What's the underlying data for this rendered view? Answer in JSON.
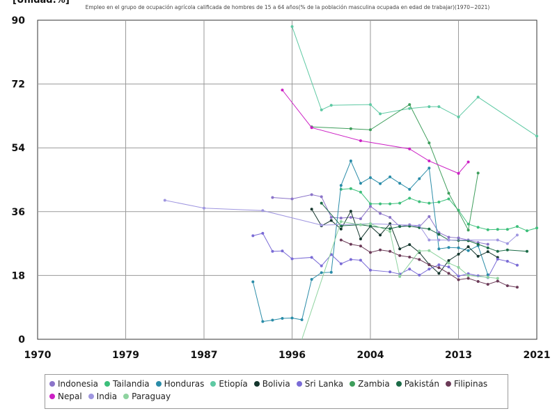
{
  "chart_data": {
    "type": "line",
    "unit_label": "[Unidad:%]",
    "title": "Empleo en el grupo de ocupación agrícola calificada de hombres de 15 a 64 años(% de la población masculina ocupada en edad de trabajar)(1970~2021)",
    "xlim": [
      1970,
      2021
    ],
    "ylim": [
      0,
      90
    ],
    "x_ticks": [
      "1970",
      "1979",
      "1987",
      "1996",
      "2004",
      "2013",
      "2021"
    ],
    "x_tick_values": [
      1970,
      1979,
      1987,
      1996,
      2004,
      2013,
      2021
    ],
    "y_ticks": [
      "0",
      "18",
      "36",
      "54",
      "72",
      "90"
    ],
    "y_tick_values": [
      0,
      18,
      36,
      54,
      72,
      90
    ],
    "grid": true,
    "legend_position": "bottom",
    "series": [
      {
        "name": "Indonesia",
        "color": "#8b74c9",
        "points": [
          [
            1994,
            40
          ],
          [
            1996,
            39.6
          ],
          [
            1998,
            40.8
          ],
          [
            1999,
            40.2
          ],
          [
            2000,
            34.4
          ],
          [
            2001,
            34.2
          ],
          [
            2002,
            34.4
          ],
          [
            2003,
            34.0
          ],
          [
            2004,
            37.5
          ],
          [
            2005,
            35.5
          ],
          [
            2006,
            34.4
          ],
          [
            2007,
            31.8
          ],
          [
            2008,
            32.3
          ],
          [
            2009,
            31.7
          ],
          [
            2010,
            34.6
          ],
          [
            2011,
            30.1
          ],
          [
            2012,
            28.8
          ],
          [
            2013,
            28.6
          ],
          [
            2014,
            28.0
          ],
          [
            2015,
            27.3
          ],
          [
            2016,
            26.8
          ]
        ]
      },
      {
        "name": "Tailandia",
        "color": "#3cbf7a",
        "points": [
          [
            2001,
            42.3
          ],
          [
            2002,
            42.5
          ],
          [
            2003,
            41.5
          ],
          [
            2004,
            38.2
          ],
          [
            2005,
            38.2
          ],
          [
            2006,
            38.2
          ],
          [
            2007,
            38.4
          ],
          [
            2008,
            39.8
          ],
          [
            2009,
            38.8
          ],
          [
            2010,
            38.4
          ],
          [
            2011,
            38.7
          ],
          [
            2012,
            39.6
          ],
          [
            2013,
            36.4
          ],
          [
            2014,
            32.5
          ],
          [
            2015,
            31.6
          ],
          [
            2016,
            30.9
          ],
          [
            2017,
            31.0
          ],
          [
            2018,
            31.0
          ],
          [
            2019,
            31.8
          ],
          [
            2020,
            30.6
          ],
          [
            2021,
            31.4
          ]
        ]
      },
      {
        "name": "Honduras",
        "color": "#2a8ca8",
        "points": [
          [
            1992,
            16.2
          ],
          [
            1993,
            5.0
          ],
          [
            1994,
            5.4
          ],
          [
            1995,
            5.9
          ],
          [
            1996,
            6.0
          ],
          [
            1997,
            5.5
          ],
          [
            1998,
            16.9
          ],
          [
            1999,
            18.8
          ],
          [
            2000,
            18.9
          ],
          [
            2001,
            43.4
          ],
          [
            2002,
            50.3
          ],
          [
            2003,
            44.0
          ],
          [
            2004,
            45.6
          ],
          [
            2005,
            43.9
          ],
          [
            2006,
            45.8
          ],
          [
            2007,
            44.0
          ],
          [
            2008,
            42.3
          ],
          [
            2009,
            45.3
          ],
          [
            2010,
            48.3
          ],
          [
            2011,
            25.5
          ],
          [
            2012,
            25.9
          ],
          [
            2013,
            25.8
          ],
          [
            2014,
            25.0
          ],
          [
            2015,
            26.4
          ],
          [
            2016,
            18.2
          ]
        ]
      },
      {
        "name": "Etiopía",
        "color": "#5ec9a3",
        "points": [
          [
            1996,
            88.2
          ],
          [
            1999,
            64.7
          ],
          [
            2000,
            66.0
          ],
          [
            2004,
            66.2
          ],
          [
            2005,
            63.6
          ],
          [
            2008,
            65.1
          ],
          [
            2010,
            65.6
          ],
          [
            2011,
            65.6
          ],
          [
            2013,
            62.7
          ],
          [
            2015,
            68.3
          ],
          [
            2021,
            57.3
          ]
        ]
      },
      {
        "name": "Bolivia",
        "color": "#14362d",
        "points": [
          [
            1998,
            36.7
          ],
          [
            1999,
            32.0
          ],
          [
            2000,
            33.5
          ],
          [
            2001,
            31.1
          ],
          [
            2002,
            36.1
          ],
          [
            2003,
            28.3
          ],
          [
            2004,
            31.9
          ],
          [
            2005,
            29.4
          ],
          [
            2006,
            32.6
          ],
          [
            2007,
            25.5
          ],
          [
            2008,
            26.7
          ],
          [
            2009,
            24.5
          ],
          [
            2010,
            21.1
          ],
          [
            2011,
            18.6
          ],
          [
            2012,
            22.2
          ],
          [
            2013,
            24.0
          ],
          [
            2014,
            26.1
          ],
          [
            2015,
            23.4
          ],
          [
            2016,
            24.7
          ],
          [
            2017,
            23.1
          ]
        ]
      },
      {
        "name": "Sri Lanka",
        "color": "#7a6bd6",
        "points": [
          [
            1992,
            29.2
          ],
          [
            1993,
            29.9
          ],
          [
            1994,
            24.8
          ],
          [
            1995,
            24.9
          ],
          [
            1996,
            22.7
          ],
          [
            1998,
            23.1
          ],
          [
            1999,
            20.7
          ],
          [
            2000,
            23.9
          ],
          [
            2001,
            21.3
          ],
          [
            2002,
            22.5
          ],
          [
            2003,
            22.3
          ],
          [
            2004,
            19.5
          ],
          [
            2006,
            19.0
          ],
          [
            2007,
            18.4
          ],
          [
            2008,
            19.8
          ],
          [
            2009,
            18.1
          ],
          [
            2010,
            19.8
          ],
          [
            2011,
            21.0
          ],
          [
            2012,
            20.4
          ],
          [
            2013,
            17.8
          ],
          [
            2014,
            18.5
          ],
          [
            2015,
            17.9
          ],
          [
            2016,
            17.4
          ],
          [
            2017,
            22.6
          ],
          [
            2018,
            22.0
          ],
          [
            2019,
            20.9
          ]
        ]
      },
      {
        "name": "Zambia",
        "color": "#3f9e5c",
        "points": [
          [
            1998,
            59.9
          ],
          [
            2002,
            59.4
          ],
          [
            2004,
            59.1
          ],
          [
            2008,
            66.2
          ],
          [
            2010,
            55.4
          ],
          [
            2012,
            41.2
          ],
          [
            2014,
            30.8
          ],
          [
            2015,
            46.9
          ]
        ]
      },
      {
        "name": "Pakistán",
        "color": "#1b6b47",
        "points": [
          [
            1999,
            38.4
          ],
          [
            2001,
            32.0
          ],
          [
            2003,
            32.3
          ],
          [
            2004,
            31.9
          ],
          [
            2006,
            31.2
          ],
          [
            2007,
            31.8
          ],
          [
            2008,
            31.9
          ],
          [
            2009,
            31.5
          ],
          [
            2010,
            31.1
          ],
          [
            2011,
            29.6
          ],
          [
            2012,
            28.0
          ],
          [
            2013,
            27.9
          ],
          [
            2014,
            27.8
          ],
          [
            2015,
            26.8
          ],
          [
            2016,
            25.8
          ],
          [
            2017,
            24.8
          ],
          [
            2018,
            25.2
          ],
          [
            2020,
            24.8
          ]
        ]
      },
      {
        "name": "Filipinas",
        "color": "#6b3a57",
        "points": [
          [
            2001,
            28.0
          ],
          [
            2002,
            26.8
          ],
          [
            2003,
            26.3
          ],
          [
            2004,
            24.5
          ],
          [
            2005,
            25.2
          ],
          [
            2006,
            24.8
          ],
          [
            2007,
            23.6
          ],
          [
            2008,
            23.2
          ],
          [
            2009,
            22.5
          ],
          [
            2010,
            21.0
          ],
          [
            2011,
            20.2
          ],
          [
            2012,
            18.6
          ],
          [
            2013,
            16.8
          ],
          [
            2014,
            17.2
          ],
          [
            2015,
            16.3
          ],
          [
            2016,
            15.5
          ],
          [
            2017,
            16.4
          ],
          [
            2018,
            15.1
          ],
          [
            2019,
            14.7
          ]
        ]
      },
      {
        "name": "Nepal",
        "color": "#cc1fc4",
        "points": [
          [
            1995,
            70.3
          ],
          [
            1998,
            59.7
          ],
          [
            2003,
            56.0
          ],
          [
            2008,
            53.7
          ],
          [
            2010,
            50.3
          ],
          [
            2013,
            46.8
          ],
          [
            2014,
            50.0
          ]
        ]
      },
      {
        "name": "India",
        "color": "#9f96e0",
        "points": [
          [
            1983,
            39.2
          ],
          [
            1987,
            37.0
          ],
          [
            1993,
            36.3
          ],
          [
            1999,
            32.2
          ],
          [
            2004,
            32.6
          ],
          [
            2009,
            32.1
          ],
          [
            2010,
            28.0
          ],
          [
            2011,
            28.0
          ],
          [
            2012,
            28.0
          ],
          [
            2017,
            28.0
          ],
          [
            2018,
            27.0
          ],
          [
            2019,
            29.4
          ]
        ]
      },
      {
        "name": "Paraguay",
        "color": "#8ed39f",
        "points": [
          [
            1997,
            -1
          ],
          [
            2001,
            33.2
          ],
          [
            2003,
            32.3
          ],
          [
            2004,
            32.6
          ],
          [
            2006,
            30.4
          ],
          [
            2007,
            17.7
          ],
          [
            2009,
            24.9
          ],
          [
            2010,
            25.0
          ],
          [
            2012,
            21.5
          ],
          [
            2013,
            20.3
          ],
          [
            2014,
            18.0
          ],
          [
            2016,
            17.5
          ],
          [
            2017,
            17.2
          ]
        ]
      }
    ]
  }
}
